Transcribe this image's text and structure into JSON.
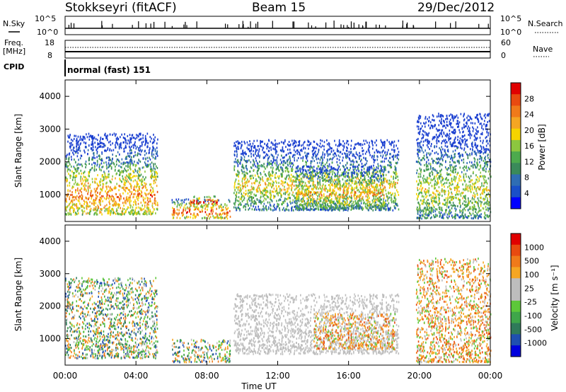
{
  "header": {
    "station": "Stokkseyri (fitACF)",
    "beam": "Beam 15",
    "date": "29/Dec/2012"
  },
  "top_panels": {
    "nsky": {
      "left_label": "N.Sky",
      "right_label": "N.Search",
      "left_ticks": [
        "10^5",
        "10^0"
      ],
      "right_ticks": [
        "10^5",
        "10^0"
      ]
    },
    "freq": {
      "left_label": "Freq.",
      "left_unit": "[MHz]",
      "right_label": "Nave",
      "left_ticks": [
        "18",
        "8"
      ],
      "right_ticks": [
        "60",
        "0"
      ]
    },
    "cpid": {
      "label": "CPID",
      "mode_text": "normal (fast) 151"
    }
  },
  "chart_data": [
    {
      "type": "heatmap",
      "name": "power",
      "ylabel": "Slant Range [km]",
      "ylim": [
        180,
        4500
      ],
      "yticks": [
        1000,
        2000,
        3000,
        4000
      ],
      "xlim_hours": [
        0,
        24
      ],
      "colorbar": {
        "label": "Power [dB]",
        "ticks": [
          "28",
          "24",
          "20",
          "16",
          "12",
          "8",
          "4"
        ],
        "colors": [
          "#0000ff",
          "#1a4fc8",
          "#2f6db4",
          "#3a8a5a",
          "#4daa4d",
          "#8cc63f",
          "#f5d400",
          "#f5a623",
          "#f07a1a",
          "#e84a10",
          "#e00000"
        ]
      },
      "regions": [
        {
          "t0": 0.0,
          "t1": 5.2,
          "r0": 420,
          "r1": 2900,
          "peak_r": 1000,
          "level": 0.75
        },
        {
          "t0": 6.0,
          "t1": 9.3,
          "r0": 300,
          "r1": 900,
          "peak_r": 500,
          "level": 0.85
        },
        {
          "t0": 7.0,
          "t1": 8.6,
          "r0": 650,
          "r1": 1000,
          "peak_r": 800,
          "level": 0.95
        },
        {
          "t0": 9.5,
          "t1": 18.8,
          "r0": 550,
          "r1": 2700,
          "peak_r": 1300,
          "level": 0.6
        },
        {
          "t0": 13.0,
          "t1": 18.0,
          "r0": 600,
          "r1": 1900,
          "peak_r": 1050,
          "level": 0.7
        },
        {
          "t0": 19.8,
          "t1": 24.0,
          "r0": 300,
          "r1": 3500,
          "peak_r": 1200,
          "level": 0.55
        }
      ]
    },
    {
      "type": "heatmap",
      "name": "velocity",
      "ylabel": "Slant Range [km]",
      "ylim": [
        180,
        4500
      ],
      "yticks": [
        1000,
        2000,
        3000,
        4000
      ],
      "xlim_hours": [
        0,
        24
      ],
      "xlabel": "Time UT",
      "xticks": [
        "00:00",
        "04:00",
        "08:00",
        "12:00",
        "16:00",
        "20:00",
        "00:00"
      ],
      "colorbar": {
        "label": "Velocity [m s⁻¹]",
        "ticks": [
          "1000",
          "500",
          "100",
          "25",
          "-25",
          "-100",
          "-500",
          "-1000"
        ],
        "colors": [
          "#0000dd",
          "#1f4fb0",
          "#2f7a5a",
          "#3fa64a",
          "#5dc83a",
          "#bdbdbd",
          "#bdbdbd",
          "#f5a623",
          "#f07a1a",
          "#e84a10",
          "#e00000"
        ]
      },
      "regions": [
        {
          "t0": 0.0,
          "t1": 5.2,
          "r0": 420,
          "r1": 2900,
          "kind": "mixed"
        },
        {
          "t0": 6.0,
          "t1": 9.3,
          "r0": 300,
          "r1": 1000,
          "kind": "mixed"
        },
        {
          "t0": 9.5,
          "t1": 18.8,
          "r0": 550,
          "r1": 2400,
          "kind": "grey"
        },
        {
          "t0": 14.0,
          "t1": 18.6,
          "r0": 700,
          "r1": 1800,
          "kind": "orange"
        },
        {
          "t0": 19.8,
          "t1": 24.0,
          "r0": 300,
          "r1": 3500,
          "kind": "orange"
        }
      ]
    }
  ]
}
